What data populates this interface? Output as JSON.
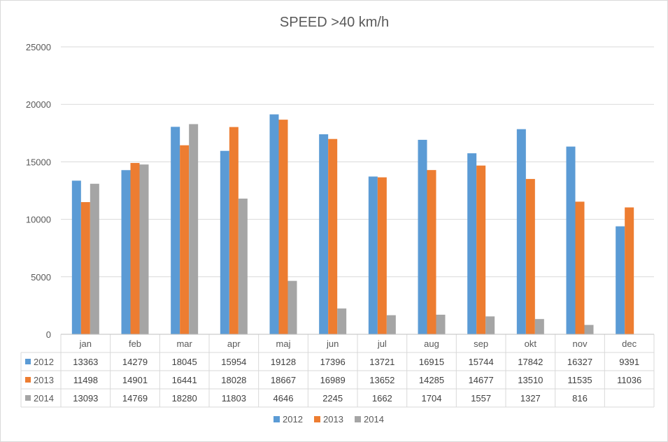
{
  "chart_data": {
    "type": "bar",
    "title": "SPEED >40 km/h",
    "xlabel": "",
    "ylabel": "",
    "ylim": [
      0,
      25000
    ],
    "yticks": [
      0,
      5000,
      10000,
      15000,
      20000,
      25000
    ],
    "grid": true,
    "legend_position": "bottom",
    "data_table": true,
    "categories": [
      "jan",
      "feb",
      "mar",
      "apr",
      "maj",
      "jun",
      "jul",
      "aug",
      "sep",
      "okt",
      "nov",
      "dec"
    ],
    "series": [
      {
        "name": "2012",
        "color": "#5B9BD5",
        "values": [
          13363,
          14279,
          18045,
          15954,
          19128,
          17396,
          13721,
          16915,
          15744,
          17842,
          16327,
          9391
        ]
      },
      {
        "name": "2013",
        "color": "#ED7D31",
        "values": [
          11498,
          14901,
          16441,
          18028,
          18667,
          16989,
          13652,
          14285,
          14677,
          13510,
          11535,
          11036
        ]
      },
      {
        "name": "2014",
        "color": "#A5A5A5",
        "values": [
          13093,
          14769,
          18280,
          11803,
          4646,
          2245,
          1662,
          1704,
          1557,
          1327,
          816,
          null
        ]
      }
    ]
  }
}
